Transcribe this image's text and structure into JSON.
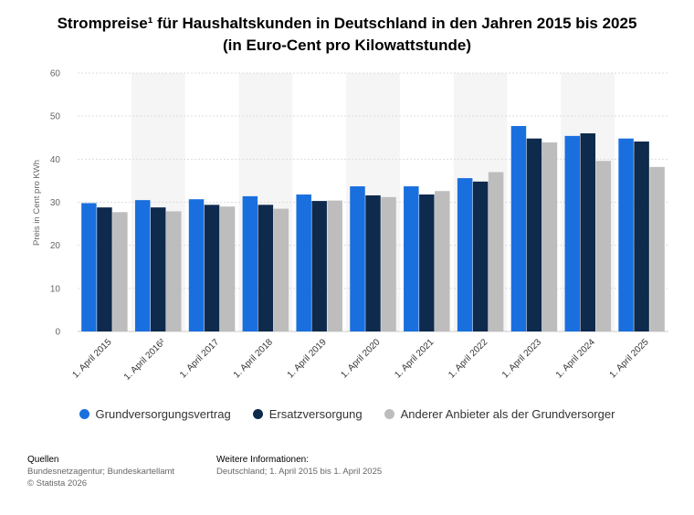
{
  "title": {
    "line1": "Strompreise¹ für Haushaltskunden in Deutschland in den Jahren 2015 bis 2025",
    "line2": "(in Euro-Cent pro Kilowattstunde)"
  },
  "chart_data": {
    "type": "bar",
    "title": "Strompreise¹ für Haushaltskunden in Deutschland in den Jahren 2015 bis 2025 (in Euro-Cent pro Kilowattstunde)",
    "xlabel": "",
    "ylabel": "Preis in Cent pro KWh",
    "ylim": [
      0,
      60
    ],
    "yticks": [
      "0",
      "10",
      "20",
      "30",
      "40",
      "50",
      "60"
    ],
    "grid": true,
    "legend_position": "bottom",
    "categories": [
      "1. April 2015",
      "1. April 2016²",
      "1. April 2017",
      "1. April 2018",
      "1. April 2019",
      "1. April 2020",
      "1. April 2021",
      "1. April 2022",
      "1. April 2023",
      "1. April 2024",
      "1. April 2025"
    ],
    "series": [
      {
        "name": "Grundversorgungsvertrag",
        "color": "#1a6fdf",
        "values": [
          29.8,
          30.5,
          30.7,
          31.4,
          31.8,
          33.7,
          33.7,
          35.6,
          47.7,
          45.4,
          44.8
        ]
      },
      {
        "name": "Ersatzversorgung",
        "color": "#0e2a4d",
        "values": [
          28.8,
          28.8,
          29.4,
          29.4,
          30.3,
          31.6,
          31.8,
          34.8,
          44.8,
          46.0,
          44.1
        ]
      },
      {
        "name": "Anderer Anbieter als der Grundversorger",
        "color": "#bdbdbd",
        "values": [
          27.7,
          27.9,
          29.0,
          28.5,
          30.4,
          31.2,
          32.6,
          37.0,
          43.9,
          39.6,
          38.2
        ]
      }
    ]
  },
  "footer": {
    "sources_heading": "Quellen",
    "sources_text": "Bundesnetzagentur; Bundeskartellamt",
    "copyright": "© Statista 2026",
    "info_heading": "Weitere Informationen:",
    "info_text": "Deutschland; 1. April 2015 bis 1. April 2025"
  }
}
